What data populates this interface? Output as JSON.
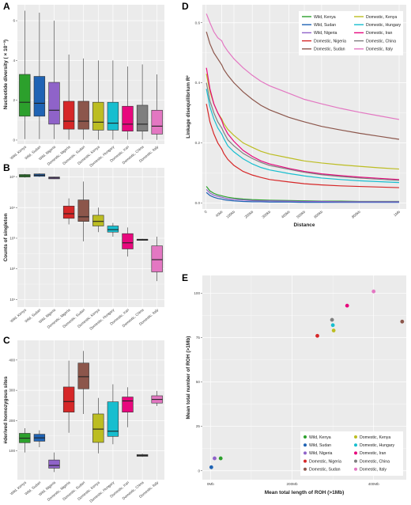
{
  "colors": {
    "Wild, Kenya": "#2ca02c",
    "Wild, Sudan": "#1f63b4",
    "Wild, Nigeria": "#8f63c9",
    "Domestic, Nigeria": "#d62728",
    "Domestic, Sudan": "#8c564b",
    "Domestic, Kenya": "#bcbd22",
    "Domestic, Hungary": "#17becf",
    "Domestic, Iran": "#e7087d",
    "Domestic, China": "#7f7f7f",
    "Domestic, Italy": "#e377c2"
  },
  "panels": {
    "A": {
      "letter": "A"
    },
    "B": {
      "letter": "B"
    },
    "C": {
      "letter": "C"
    },
    "D": {
      "letter": "D"
    },
    "E": {
      "letter": "E"
    }
  },
  "chart_data": [
    {
      "panel": "A",
      "type": "box",
      "ylabel": "Nucleotide diversity ( × 10⁻³)",
      "ylim": [
        -0.2,
        6.8
      ],
      "yticks": [
        {
          "v": 0,
          "label": "0"
        },
        {
          "v": 2,
          "label": "2"
        },
        {
          "v": 4,
          "label": "4"
        },
        {
          "v": 6,
          "label": "6"
        }
      ],
      "categories": [
        "Wild, Kenya",
        "Wild, Sudan",
        "Wild, Nigeria",
        "Domestic, Nigeria",
        "Domestic, Sudan",
        "Domestic, Kenya",
        "Domestic, Hungary",
        "Domestic, Iran",
        "Domestic, China",
        "Domestic, Italy"
      ],
      "boxes": [
        {
          "q1": 1.2,
          "median": 1.9,
          "q3": 3.3,
          "lo": 0.05,
          "hi": 6.5
        },
        {
          "q1": 1.2,
          "median": 1.85,
          "q3": 3.2,
          "lo": 0.05,
          "hi": 6.4
        },
        {
          "q1": 0.8,
          "median": 1.5,
          "q3": 2.9,
          "lo": 0.05,
          "hi": 6.0
        },
        {
          "q1": 0.55,
          "median": 0.95,
          "q3": 1.95,
          "lo": 0.02,
          "hi": 4.3
        },
        {
          "q1": 0.55,
          "median": 0.95,
          "q3": 1.95,
          "lo": 0.02,
          "hi": 4.1
        },
        {
          "q1": 0.5,
          "median": 0.9,
          "q3": 1.9,
          "lo": 0.02,
          "hi": 4.0
        },
        {
          "q1": 0.5,
          "median": 0.85,
          "q3": 1.9,
          "lo": 0.02,
          "hi": 4.0
        },
        {
          "q1": 0.45,
          "median": 0.8,
          "q3": 1.7,
          "lo": 0.02,
          "hi": 3.7
        },
        {
          "q1": 0.45,
          "median": 0.8,
          "q3": 1.75,
          "lo": 0.02,
          "hi": 3.8
        },
        {
          "q1": 0.3,
          "median": 0.7,
          "q3": 1.5,
          "lo": 0.01,
          "hi": 3.3
        }
      ]
    },
    {
      "panel": "B",
      "type": "box",
      "scale": "log10",
      "ylabel": "Counts of singleton",
      "ylim": [
        0.75,
        5.3
      ],
      "yticks": [
        {
          "v": 1,
          "label": "10¹"
        },
        {
          "v": 2,
          "label": "10²"
        },
        {
          "v": 3,
          "label": "10³"
        },
        {
          "v": 4,
          "label": "10⁴"
        },
        {
          "v": 5,
          "label": "10⁵"
        }
      ],
      "categories": [
        "Wild, Kenya",
        "Wild, Sudan",
        "Wild, Nigeria",
        "Domestic, Nigeria",
        "Domestic, Sudan",
        "Domestic, Kenya",
        "Domestic, Hungary",
        "Domestic, Iran",
        "Domestic, China",
        "Domestic, Italy"
      ],
      "boxes": [
        {
          "q1": 5.0,
          "median": 5.04,
          "q3": 5.08,
          "lo": 4.98,
          "hi": 5.1
        },
        {
          "q1": 5.02,
          "median": 5.06,
          "q3": 5.1,
          "lo": 5.0,
          "hi": 5.12
        },
        {
          "q1": 4.94,
          "median": 4.97,
          "q3": 5.0,
          "lo": 4.93,
          "hi": 5.01
        },
        {
          "q1": 3.65,
          "median": 3.8,
          "q3": 4.05,
          "lo": 3.45,
          "hi": 4.3
        },
        {
          "q1": 3.55,
          "median": 3.7,
          "q3": 4.25,
          "lo": 2.9,
          "hi": 4.85
        },
        {
          "q1": 3.4,
          "median": 3.55,
          "q3": 3.75,
          "lo": 3.2,
          "hi": 4.0
        },
        {
          "q1": 3.2,
          "median": 3.28,
          "q3": 3.4,
          "lo": 3.05,
          "hi": 3.5
        },
        {
          "q1": 2.65,
          "median": 2.85,
          "q3": 3.15,
          "lo": 2.4,
          "hi": 3.35
        },
        {
          "q1": 2.93,
          "median": 2.95,
          "q3": 2.97,
          "lo": 2.92,
          "hi": 2.98
        },
        {
          "q1": 1.9,
          "median": 2.3,
          "q3": 2.75,
          "lo": 1.6,
          "hi": 3.05
        }
      ]
    },
    {
      "panel": "C",
      "type": "box",
      "ylabel": "#derived homozygous sites",
      "ylim": [
        5,
        465
      ],
      "yticks": [
        {
          "v": 100,
          "label": "100"
        },
        {
          "v": 200,
          "label": "200"
        },
        {
          "v": 300,
          "label": "300"
        },
        {
          "v": 400,
          "label": "400"
        }
      ],
      "categories": [
        "Wild, Kenya",
        "Wild, Sudan",
        "Wild, Nigeria",
        "Domestic, Nigeria",
        "Domestic, Sudan",
        "Domestic, Kenya",
        "Domestic, Hungary",
        "Domestic, Iran",
        "Domestic, China",
        "Domestic, Italy"
      ],
      "boxes": [
        {
          "q1": 127,
          "median": 142,
          "q3": 158,
          "lo": 95,
          "hi": 175
        },
        {
          "q1": 132,
          "median": 143,
          "q3": 155,
          "lo": 112,
          "hi": 168
        },
        {
          "q1": 43,
          "median": 52,
          "q3": 70,
          "lo": 30,
          "hi": 95
        },
        {
          "q1": 228,
          "median": 263,
          "q3": 311,
          "lo": 160,
          "hi": 398
        },
        {
          "q1": 305,
          "median": 345,
          "q3": 390,
          "lo": 222,
          "hi": 430
        },
        {
          "q1": 128,
          "median": 172,
          "q3": 222,
          "lo": 92,
          "hi": 275
        },
        {
          "q1": 148,
          "median": 165,
          "q3": 262,
          "lo": 122,
          "hi": 320
        },
        {
          "q1": 228,
          "median": 265,
          "q3": 278,
          "lo": 178,
          "hi": 310
        },
        {
          "q1": 82,
          "median": 85,
          "q3": 88,
          "lo": 80,
          "hi": 91
        },
        {
          "q1": 258,
          "median": 270,
          "q3": 282,
          "lo": 248,
          "hi": 298
        }
      ]
    },
    {
      "panel": "D",
      "type": "line",
      "xlabel": "Distance",
      "ylabel": "Linkage disequilibrium R²",
      "xlim": [
        -20,
        1020
      ],
      "ylim": [
        -0.02,
        0.66
      ],
      "xticks": [
        {
          "v": 0,
          "label": "0"
        },
        {
          "v": 40,
          "label": "40kb"
        },
        {
          "v": 100,
          "label": "100kb"
        },
        {
          "v": 200,
          "label": "200kb"
        },
        {
          "v": 300,
          "label": "300kb"
        },
        {
          "v": 400,
          "label": "400kb"
        },
        {
          "v": 500,
          "label": "500kb"
        },
        {
          "v": 600,
          "label": "600kb"
        },
        {
          "v": 800,
          "label": "800kb"
        },
        {
          "v": 1000,
          "label": "1Mb"
        }
      ],
      "yticks": [
        {
          "v": 0,
          "label": "0.0"
        },
        {
          "v": 0.2,
          "label": "0.2"
        },
        {
          "v": 0.4,
          "label": "0.4"
        },
        {
          "v": 0.6,
          "label": "0.6"
        }
      ],
      "legend_position": "top-right",
      "legend_order": [
        "Wild, Kenya",
        "Wild, Sudan",
        "Wild, Nigeria",
        "Domestic, Nigeria",
        "Domestic, Sudan",
        "Domestic, Kenya",
        "Domestic, Hungary",
        "Domestic, Iran",
        "Domestic, China",
        "Domestic, Italy"
      ],
      "x": [
        1,
        10,
        20,
        30,
        40,
        50,
        70,
        100,
        150,
        200,
        250,
        300,
        400,
        500,
        600,
        700,
        800,
        900,
        1000
      ],
      "series": [
        {
          "name": "Wild, Kenya",
          "values": [
            0.055,
            0.04,
            0.032,
            0.027,
            0.024,
            0.022,
            0.019,
            0.016,
            0.013,
            0.011,
            0.01,
            0.009,
            0.008,
            0.007,
            0.006,
            0.006,
            0.005,
            0.005,
            0.005
          ]
        },
        {
          "name": "Wild, Sudan",
          "values": [
            0.035,
            0.025,
            0.019,
            0.015,
            0.013,
            0.011,
            0.009,
            0.007,
            0.005,
            0.004,
            0.004,
            0.003,
            0.003,
            0.002,
            0.002,
            0.002,
            0.002,
            0.002,
            0.002
          ]
        },
        {
          "name": "Wild, Nigeria",
          "values": [
            0.045,
            0.033,
            0.026,
            0.022,
            0.019,
            0.017,
            0.014,
            0.012,
            0.01,
            0.008,
            0.007,
            0.007,
            0.006,
            0.005,
            0.005,
            0.004,
            0.004,
            0.004,
            0.004
          ]
        },
        {
          "name": "Domestic, Nigeria",
          "values": [
            0.33,
            0.27,
            0.23,
            0.2,
            0.18,
            0.165,
            0.145,
            0.125,
            0.105,
            0.093,
            0.085,
            0.078,
            0.07,
            0.064,
            0.06,
            0.057,
            0.055,
            0.053,
            0.051
          ]
        },
        {
          "name": "Domestic, Sudan",
          "values": [
            0.57,
            0.53,
            0.5,
            0.48,
            0.46,
            0.445,
            0.425,
            0.4,
            0.37,
            0.345,
            0.325,
            0.31,
            0.285,
            0.27,
            0.255,
            0.243,
            0.232,
            0.222,
            0.212
          ]
        },
        {
          "name": "Domestic, Kenya",
          "values": [
            0.43,
            0.37,
            0.33,
            0.3,
            0.28,
            0.265,
            0.245,
            0.225,
            0.2,
            0.185,
            0.172,
            0.163,
            0.15,
            0.14,
            0.133,
            0.127,
            0.122,
            0.117,
            0.113
          ]
        },
        {
          "name": "Domestic, Hungary",
          "values": [
            0.38,
            0.32,
            0.28,
            0.25,
            0.23,
            0.215,
            0.19,
            0.17,
            0.147,
            0.13,
            0.118,
            0.11,
            0.098,
            0.09,
            0.083,
            0.078,
            0.074,
            0.071,
            0.068
          ]
        },
        {
          "name": "Domestic, Iran",
          "values": [
            0.45,
            0.38,
            0.33,
            0.3,
            0.275,
            0.255,
            0.23,
            0.205,
            0.175,
            0.155,
            0.14,
            0.13,
            0.115,
            0.105,
            0.097,
            0.091,
            0.086,
            0.082,
            0.078
          ]
        },
        {
          "name": "Domestic, China",
          "values": [
            0.4,
            0.34,
            0.3,
            0.27,
            0.25,
            0.235,
            0.21,
            0.19,
            0.165,
            0.148,
            0.135,
            0.125,
            0.112,
            0.102,
            0.094,
            0.088,
            0.083,
            0.079,
            0.075
          ]
        },
        {
          "name": "Domestic, Italy",
          "values": [
            0.63,
            0.6,
            0.57,
            0.55,
            0.54,
            0.525,
            0.505,
            0.48,
            0.45,
            0.425,
            0.405,
            0.39,
            0.365,
            0.345,
            0.33,
            0.315,
            0.302,
            0.29,
            0.278
          ]
        }
      ]
    },
    {
      "panel": "E",
      "type": "scatter",
      "xlabel": "Mean total length of ROH (>1Mb)",
      "ylabel": "Mean total number of ROH (>1Mb)",
      "xlim": [
        -20,
        480
      ],
      "ylim": [
        -5,
        110
      ],
      "xticks": [
        {
          "v": 0,
          "label": "0Mb"
        },
        {
          "v": 200,
          "label": "200Mb"
        },
        {
          "v": 400,
          "label": "400Mb"
        }
      ],
      "yticks": [
        {
          "v": 0,
          "label": "0"
        },
        {
          "v": 25,
          "label": "25"
        },
        {
          "v": 50,
          "label": "50"
        },
        {
          "v": 75,
          "label": "75"
        },
        {
          "v": 100,
          "label": "100"
        }
      ],
      "legend_position": "bottom-right",
      "legend_order": [
        "Wild, Kenya",
        "Wild, Sudan",
        "Wild, Nigeria",
        "Domestic, Nigeria",
        "Domestic, Sudan",
        "Domestic, Kenya",
        "Domestic, Hungary",
        "Domestic, Iran",
        "Domestic, China",
        "Domestic, Italy"
      ],
      "points": [
        {
          "name": "Wild, Kenya",
          "x": 25,
          "y": 7
        },
        {
          "name": "Wild, Sudan",
          "x": 2,
          "y": 2
        },
        {
          "name": "Wild, Nigeria",
          "x": 10,
          "y": 7
        },
        {
          "name": "Domestic, Nigeria",
          "x": 262,
          "y": 76
        },
        {
          "name": "Domestic, Sudan",
          "x": 470,
          "y": 84
        },
        {
          "name": "Domestic, Kenya",
          "x": 302,
          "y": 79
        },
        {
          "name": "Domestic, Hungary",
          "x": 300,
          "y": 82
        },
        {
          "name": "Domestic, Iran",
          "x": 335,
          "y": 93
        },
        {
          "name": "Domestic, China",
          "x": 298,
          "y": 85
        },
        {
          "name": "Domestic, Italy",
          "x": 400,
          "y": 101
        }
      ]
    }
  ]
}
